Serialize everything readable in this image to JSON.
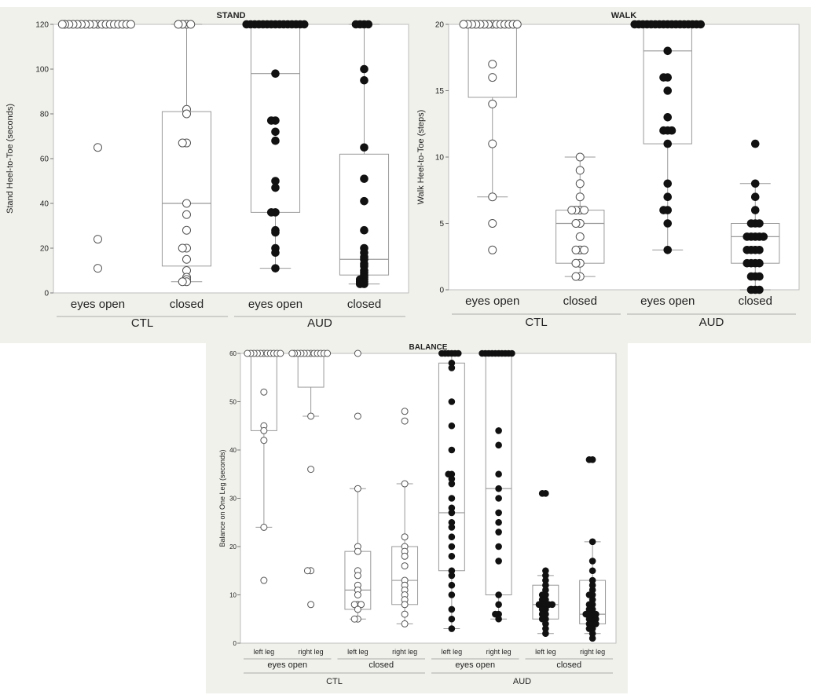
{
  "colors": {
    "panel_bg": "#f1f1ec",
    "plot_bg": "#ffffff",
    "ctl_marker": "#555555",
    "aud_marker": "#111111",
    "box_line": "#999999"
  },
  "chart_data": [
    {
      "type": "box",
      "title": "STAND",
      "ylabel": "Stand Heel-to-Toe (seconds)",
      "ylim": [
        0,
        120
      ],
      "yticks": [
        0,
        20,
        40,
        60,
        80,
        100,
        120
      ],
      "categories": [
        "eyes open",
        "closed",
        "eyes open",
        "closed"
      ],
      "groups": [
        {
          "label": "CTL",
          "count": 2
        },
        {
          "label": "AUD",
          "count": 2
        }
      ],
      "boxes": [
        {
          "q1": 120,
          "median": 120,
          "q3": 120,
          "low": 120,
          "high": 120,
          "filled": false,
          "points": [
            120,
            120,
            120,
            120,
            120,
            120,
            120,
            120,
            120,
            120,
            120,
            120,
            120,
            120,
            120,
            120,
            120,
            120,
            65,
            24,
            11
          ]
        },
        {
          "q1": 12,
          "median": 40,
          "q3": 81,
          "low": 5,
          "high": 120,
          "filled": false,
          "points": [
            120,
            120,
            120,
            120,
            82,
            80,
            67,
            67,
            40,
            35,
            28,
            20,
            20,
            15,
            10,
            7,
            6,
            5,
            5
          ]
        },
        {
          "q1": 36,
          "median": 98,
          "q3": 120,
          "low": 11,
          "high": 120,
          "filled": true,
          "points": [
            120,
            120,
            120,
            120,
            120,
            120,
            120,
            120,
            120,
            120,
            120,
            120,
            120,
            120,
            120,
            98,
            77,
            77,
            72,
            68,
            50,
            47,
            36,
            36,
            28,
            27,
            20,
            18,
            11
          ]
        },
        {
          "q1": 8,
          "median": 15,
          "q3": 62,
          "low": 4,
          "high": 120,
          "filled": true,
          "points": [
            120,
            120,
            120,
            120,
            100,
            95,
            65,
            51,
            41,
            28,
            20,
            18,
            16,
            15,
            13,
            12,
            10,
            9,
            8,
            7,
            6,
            6,
            5,
            5,
            4,
            4
          ]
        }
      ]
    },
    {
      "type": "box",
      "title": "WALK",
      "ylabel": "Walk Heel-to-Toe (steps)",
      "ylim": [
        0,
        20
      ],
      "yticks": [
        0,
        5,
        10,
        15,
        20
      ],
      "categories": [
        "eyes open",
        "closed",
        "eyes open",
        "closed"
      ],
      "groups": [
        {
          "label": "CTL",
          "count": 2
        },
        {
          "label": "AUD",
          "count": 2
        }
      ],
      "boxes": [
        {
          "q1": 14.5,
          "median": 20,
          "q3": 20,
          "low": 7,
          "high": 20,
          "filled": false,
          "points": [
            20,
            20,
            20,
            20,
            20,
            20,
            20,
            20,
            20,
            20,
            20,
            20,
            20,
            20,
            17,
            16,
            14,
            11,
            7,
            5,
            3
          ]
        },
        {
          "q1": 2,
          "median": 5,
          "q3": 6,
          "low": 1,
          "high": 10,
          "filled": false,
          "points": [
            10,
            9,
            8,
            7,
            6,
            6,
            6,
            6,
            5,
            5,
            4,
            3,
            3,
            3,
            2,
            2,
            1,
            1
          ]
        },
        {
          "q1": 11,
          "median": 18,
          "q3": 20,
          "low": 3,
          "high": 20,
          "filled": true,
          "points": [
            20,
            20,
            20,
            20,
            20,
            20,
            20,
            20,
            20,
            20,
            20,
            20,
            20,
            20,
            20,
            20,
            20,
            18,
            16,
            16,
            15,
            13,
            12,
            12,
            12,
            11,
            8,
            7,
            6,
            6,
            5,
            3
          ]
        },
        {
          "q1": 2,
          "median": 4,
          "q3": 5,
          "low": 0,
          "high": 8,
          "filled": true,
          "points": [
            11,
            8,
            7,
            6,
            5,
            5,
            5,
            4,
            4,
            4,
            4,
            4,
            3,
            3,
            3,
            3,
            2,
            2,
            2,
            2,
            1,
            1,
            1,
            0,
            0,
            0
          ]
        }
      ]
    },
    {
      "type": "box",
      "title": "BALANCE",
      "ylabel": "Balance on One Leg (seconds)",
      "ylim": [
        0,
        60
      ],
      "yticks": [
        0,
        10,
        20,
        30,
        40,
        50,
        60
      ],
      "categories": [
        "left leg",
        "right leg",
        "left leg",
        "right leg",
        "left leg",
        "right leg",
        "left leg",
        "right leg"
      ],
      "subgroups": [
        {
          "label": "eyes open",
          "count": 2
        },
        {
          "label": "closed",
          "count": 2
        },
        {
          "label": "eyes open",
          "count": 2
        },
        {
          "label": "closed",
          "count": 2
        }
      ],
      "groups": [
        {
          "label": "CTL",
          "count": 4
        },
        {
          "label": "AUD",
          "count": 4
        }
      ],
      "boxes": [
        {
          "q1": 44,
          "median": 60,
          "q3": 60,
          "low": 24,
          "high": 60,
          "filled": false,
          "points": [
            60,
            60,
            60,
            60,
            60,
            60,
            60,
            60,
            60,
            60,
            60,
            52,
            45,
            44,
            42,
            24,
            13
          ]
        },
        {
          "q1": 53,
          "median": 60,
          "q3": 60,
          "low": 47,
          "high": 60,
          "filled": false,
          "points": [
            60,
            60,
            60,
            60,
            60,
            60,
            60,
            60,
            60,
            60,
            60,
            60,
            47,
            36,
            15,
            15,
            8
          ]
        },
        {
          "q1": 7,
          "median": 11,
          "q3": 19,
          "low": 5,
          "high": 32,
          "filled": false,
          "points": [
            60,
            47,
            32,
            20,
            19,
            15,
            14,
            12,
            11,
            10,
            8,
            8,
            8,
            7,
            5,
            5
          ]
        },
        {
          "q1": 8,
          "median": 13,
          "q3": 20,
          "low": 4,
          "high": 33,
          "filled": false,
          "points": [
            48,
            46,
            33,
            22,
            20,
            19,
            18,
            16,
            13,
            12,
            11,
            10,
            9,
            8,
            6,
            4
          ]
        },
        {
          "q1": 15,
          "median": 27,
          "q3": 58,
          "low": 3,
          "high": 60,
          "filled": true,
          "points": [
            60,
            60,
            60,
            60,
            60,
            60,
            58,
            57,
            50,
            45,
            40,
            35,
            35,
            34,
            33,
            30,
            28,
            27,
            25,
            24,
            22,
            20,
            18,
            15,
            14,
            12,
            10,
            7,
            5,
            3
          ]
        },
        {
          "q1": 10,
          "median": 32,
          "q3": 60,
          "low": 5,
          "high": 60,
          "filled": true,
          "points": [
            60,
            60,
            60,
            60,
            60,
            60,
            60,
            60,
            60,
            60,
            44,
            41,
            35,
            32,
            30,
            27,
            25,
            23,
            20,
            17,
            10,
            8,
            6,
            6,
            5
          ]
        },
        {
          "q1": 5,
          "median": 8,
          "q3": 12,
          "low": 2,
          "high": 14,
          "filled": true,
          "points": [
            31,
            31,
            15,
            14,
            13,
            12,
            11,
            10,
            10,
            9,
            9,
            8,
            8,
            8,
            8,
            8,
            7,
            7,
            6,
            6,
            5,
            5,
            4,
            3,
            2
          ]
        },
        {
          "q1": 4,
          "median": 6,
          "q3": 13,
          "low": 2,
          "high": 21,
          "filled": true,
          "points": [
            38,
            38,
            21,
            17,
            15,
            13,
            12,
            11,
            10,
            10,
            9,
            8,
            8,
            7,
            7,
            6,
            6,
            6,
            6,
            5,
            5,
            5,
            4,
            4,
            4,
            3,
            3,
            2,
            1
          ]
        }
      ]
    }
  ]
}
